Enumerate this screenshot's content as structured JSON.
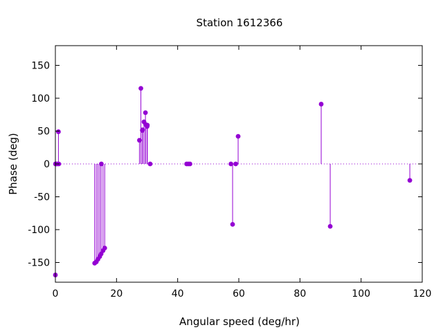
{
  "chart_data": {
    "type": "stem",
    "title": "Station 1612366",
    "xlabel": "Angular speed (deg/hr)",
    "ylabel": "Phase (deg)",
    "xlim": [
      0,
      120
    ],
    "ylim": [
      -180,
      180
    ],
    "xticks": [
      0,
      20,
      40,
      60,
      80,
      100,
      120
    ],
    "yticks": [
      -150,
      -100,
      -50,
      0,
      50,
      100,
      150
    ],
    "xtick_labels": [
      "0",
      "20",
      "40",
      "60",
      "80",
      "100",
      "120"
    ],
    "ytick_labels": [
      "-150",
      "-100",
      "-50",
      "0",
      "50",
      "100",
      "150"
    ],
    "zero_line": "dotted",
    "grid": false,
    "color": "#9400d3",
    "points": [
      {
        "x": 0.0,
        "y": -169
      },
      {
        "x": 0.04,
        "y": 0
      },
      {
        "x": 0.08,
        "y": 0
      },
      {
        "x": 0.54,
        "y": 0
      },
      {
        "x": 1.0,
        "y": 49
      },
      {
        "x": 1.1,
        "y": 0
      },
      {
        "x": 12.85,
        "y": -151
      },
      {
        "x": 13.4,
        "y": -149
      },
      {
        "x": 13.94,
        "y": -145
      },
      {
        "x": 14.5,
        "y": -141
      },
      {
        "x": 14.96,
        "y": -137
      },
      {
        "x": 15.04,
        "y": 0
      },
      {
        "x": 15.59,
        "y": -132
      },
      {
        "x": 16.14,
        "y": -128
      },
      {
        "x": 27.5,
        "y": 36
      },
      {
        "x": 27.97,
        "y": 115
      },
      {
        "x": 28.44,
        "y": 51
      },
      {
        "x": 28.51,
        "y": 52
      },
      {
        "x": 28.98,
        "y": 64
      },
      {
        "x": 29.46,
        "y": 78
      },
      {
        "x": 29.53,
        "y": 60
      },
      {
        "x": 30.0,
        "y": 57
      },
      {
        "x": 30.08,
        "y": 59
      },
      {
        "x": 31.0,
        "y": 0
      },
      {
        "x": 42.93,
        "y": 0
      },
      {
        "x": 43.48,
        "y": 0
      },
      {
        "x": 44.03,
        "y": 0
      },
      {
        "x": 57.42,
        "y": 0
      },
      {
        "x": 57.97,
        "y": -92
      },
      {
        "x": 58.98,
        "y": 0
      },
      {
        "x": 59.78,
        "y": 42
      },
      {
        "x": 86.95,
        "y": 91
      },
      {
        "x": 89.9,
        "y": -95
      },
      {
        "x": 115.94,
        "y": -25
      }
    ]
  }
}
